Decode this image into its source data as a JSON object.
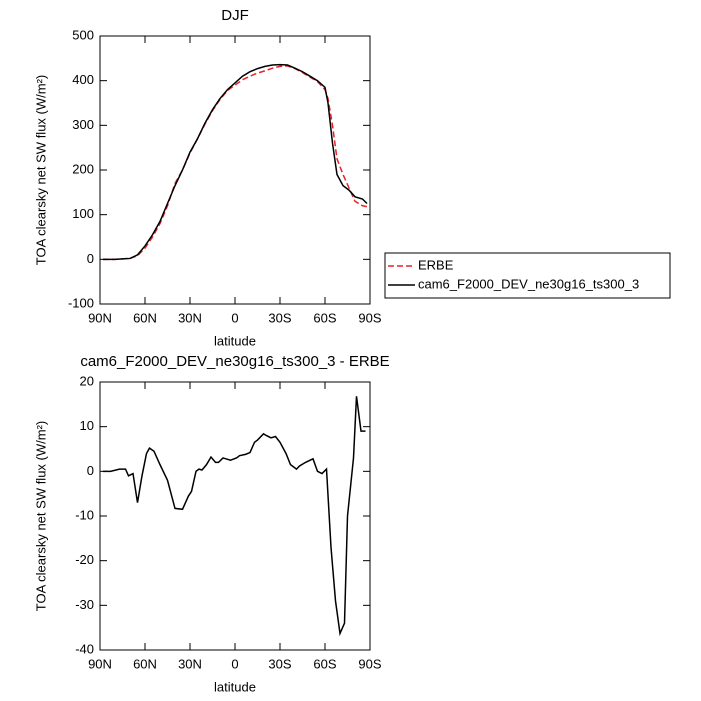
{
  "chart_data": [
    {
      "type": "line",
      "title": "DJF",
      "x_label": "latitude",
      "y_label": "TOA clearsky net SW flux (W/m²)",
      "x": [
        88,
        80,
        70,
        65,
        60,
        55,
        50,
        45,
        40,
        35,
        30,
        25,
        20,
        15,
        10,
        5,
        0,
        -5,
        -10,
        -15,
        -20,
        -25,
        -30,
        -35,
        -40,
        -45,
        -50,
        -55,
        -60,
        -62,
        -65,
        -68,
        -72,
        -76,
        -80,
        -85,
        -88
      ],
      "series": [
        {
          "name": "ERBE",
          "color": "#e8222a",
          "dashed": true,
          "values": [
            0,
            0,
            2,
            8,
            25,
            50,
            80,
            120,
            170,
            200,
            238,
            270,
            303,
            333,
            358,
            378,
            390,
            402,
            410,
            417,
            422,
            428,
            432,
            433,
            427,
            418,
            408,
            398,
            380,
            360,
            300,
            225,
            190,
            160,
            130,
            120,
            118
          ]
        },
        {
          "name": "cam6_F2000_DEV_ne30g16_ts300_3",
          "color": "#000000",
          "dashed": false,
          "values": [
            0,
            0,
            2,
            10,
            30,
            55,
            85,
            125,
            165,
            200,
            240,
            270,
            305,
            335,
            360,
            380,
            395,
            410,
            420,
            427,
            432,
            435,
            436,
            435,
            428,
            420,
            410,
            400,
            385,
            350,
            260,
            190,
            165,
            155,
            140,
            135,
            125
          ]
        }
      ],
      "xlim": [
        90,
        -90
      ],
      "xticks": [
        {
          "value": 90,
          "label": "90N"
        },
        {
          "value": 60,
          "label": "60N"
        },
        {
          "value": 30,
          "label": "30N"
        },
        0,
        {
          "value": -30,
          "label": "30S"
        },
        {
          "value": -60,
          "label": "60S"
        },
        {
          "value": -90,
          "label": "90S"
        }
      ],
      "ylim": [
        -100,
        500
      ],
      "yticks": [
        -100,
        0,
        100,
        200,
        300,
        400,
        500
      ],
      "legend": "right"
    },
    {
      "type": "line",
      "title": "cam6_F2000_DEV_ne30g16_ts300_3 - ERBE",
      "x_label": "latitude",
      "y_label": "TOA clearsky net SW flux (W/m²)",
      "x": [
        88,
        83,
        77,
        73,
        71,
        68,
        65,
        62,
        59,
        57,
        54,
        50,
        45,
        40,
        35,
        31,
        29,
        26,
        24,
        22,
        19,
        16,
        13,
        11,
        8,
        3,
        -1,
        -3,
        -7,
        -10,
        -13,
        -15,
        -19,
        -21,
        -24,
        -27,
        -30,
        -34,
        -37,
        -41,
        -43,
        -47,
        -52,
        -55,
        -58,
        -61,
        -64,
        -67,
        -70,
        -73,
        -75,
        -79,
        -81,
        -84,
        -87
      ],
      "series": [
        {
          "color": "#000000",
          "dashed": false,
          "values": [
            0,
            0,
            0.5,
            0.5,
            -1,
            -0.5,
            -7,
            -1,
            4,
            5.2,
            4.5,
            1.5,
            -2,
            -8.3,
            -8.5,
            -5.5,
            -4.5,
            0,
            0.5,
            0.3,
            1.5,
            3.2,
            2,
            2,
            3,
            2.5,
            3,
            3.5,
            3.8,
            4.2,
            6.5,
            7,
            8.4,
            8,
            7.5,
            7.8,
            6.5,
            4,
            1.5,
            0.5,
            1.2,
            2,
            2.8,
            0,
            -0.5,
            0.5,
            -17,
            -29,
            -36.3,
            -34,
            -10,
            3,
            16.8,
            9,
            9
          ]
        }
      ],
      "xlim": [
        90,
        -90
      ],
      "xticks": [
        {
          "value": 90,
          "label": "90N"
        },
        {
          "value": 60,
          "label": "60N"
        },
        {
          "value": 30,
          "label": "30N"
        },
        0,
        {
          "value": -30,
          "label": "30S"
        },
        {
          "value": -60,
          "label": "60S"
        },
        {
          "value": -90,
          "label": "90S"
        }
      ],
      "ylim": [
        -40,
        20
      ],
      "yticks": [
        -40,
        -30,
        -20,
        -10,
        0,
        10,
        20
      ]
    }
  ]
}
